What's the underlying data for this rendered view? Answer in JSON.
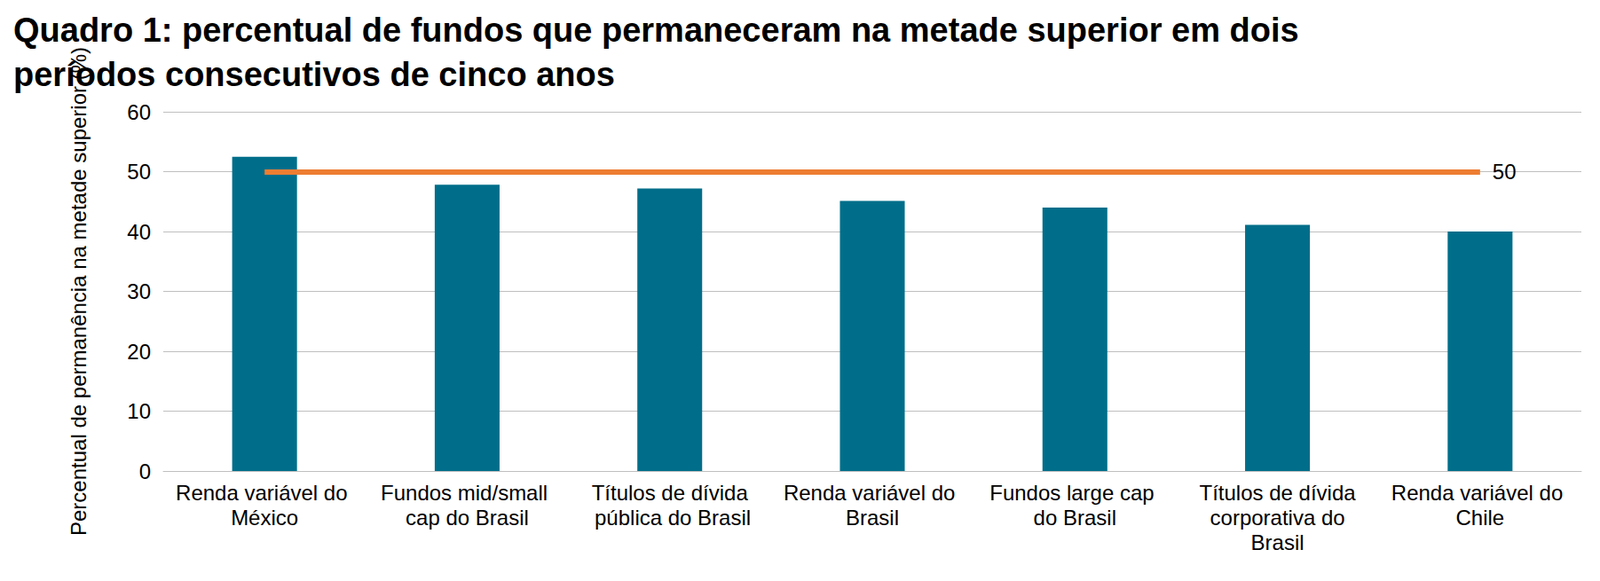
{
  "chart_data": {
    "type": "bar",
    "title": "Quadro 1: percentual de fundos que permaneceram na metade superior em dois períodos consecutivos de cinco anos",
    "y_label": "Percentual de permanência na metade superior (%)",
    "categories": [
      "Renda variável do México",
      "Fundos mid/small cap do Brasil",
      "Títulos de dívida pública do Brasil",
      "Renda variável do Brasil",
      "Fundos large cap do Brasil",
      "Títulos de dívida corporativa do Brasil",
      "Renda variável do Chile"
    ],
    "values": [
      52.5,
      47.8,
      47.2,
      45.1,
      44.0,
      41.1,
      40.0
    ],
    "color": "#006E8A",
    "ylim": [
      0,
      60
    ],
    "yticks": [
      0,
      10,
      20,
      30,
      40,
      50,
      60
    ],
    "grid": true,
    "reference_line": {
      "value": 50,
      "label": "50",
      "color": "#ED7D31"
    }
  }
}
